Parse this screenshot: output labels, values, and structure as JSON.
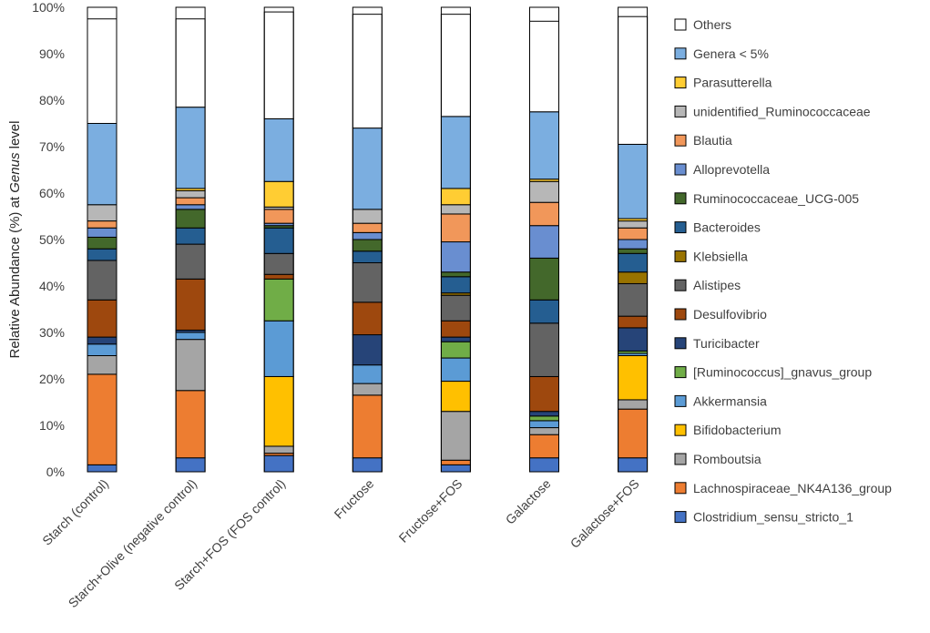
{
  "chart_data": {
    "type": "bar",
    "stacked": true,
    "title": "",
    "xlabel": "",
    "ylabel": {
      "prefix": "Relative Abundance (%) at ",
      "italic": "Genus",
      "suffix": " level"
    },
    "ylim": [
      0,
      100
    ],
    "yticks": [
      "0%",
      "10%",
      "20%",
      "30%",
      "40%",
      "50%",
      "60%",
      "70%",
      "80%",
      "90%",
      "100%"
    ],
    "categories": [
      "Starch (control)",
      "Starch+Olive (negative control)",
      "Starch+FOS (FOS control)",
      "Fructose",
      "Fructose+FOS",
      "Galactose",
      "Galactose+FOS"
    ],
    "legend_position": "right",
    "series": [
      {
        "name": "Clostridium_sensu_stricto_1",
        "color": "#4472C4",
        "values": [
          1.5,
          3.0,
          3.5,
          3.0,
          1.5,
          3.0,
          3.0
        ]
      },
      {
        "name": "Lachnospiraceae_NK4A136_group",
        "color": "#ED7D31",
        "values": [
          19.5,
          14.5,
          0.5,
          13.5,
          1.0,
          5.0,
          10.5
        ]
      },
      {
        "name": "Romboutsia",
        "color": "#A5A5A5",
        "values": [
          4.0,
          11.0,
          1.5,
          2.5,
          10.5,
          1.5,
          2.0
        ]
      },
      {
        "name": "Bifidobacterium",
        "color": "#FFC000",
        "values": [
          0.0,
          0.0,
          15.0,
          0.0,
          6.5,
          0.0,
          9.5
        ]
      },
      {
        "name": "Akkermansia",
        "color": "#5B9BD5",
        "values": [
          2.5,
          1.5,
          12.0,
          4.0,
          5.0,
          1.5,
          0.5
        ]
      },
      {
        "name": "[Ruminococcus]_gnavus_group",
        "color": "#70AD47",
        "values": [
          0.0,
          0.0,
          9.0,
          0.0,
          3.5,
          1.0,
          0.5
        ]
      },
      {
        "name": "Turicibacter",
        "color": "#264478",
        "values": [
          1.5,
          0.5,
          0.0,
          6.5,
          1.0,
          1.0,
          5.0
        ]
      },
      {
        "name": "Desulfovibrio",
        "color": "#9E480E",
        "values": [
          8.0,
          11.0,
          1.0,
          7.0,
          3.5,
          7.5,
          2.5
        ]
      },
      {
        "name": "Alistipes",
        "color": "#636363",
        "values": [
          8.5,
          7.5,
          4.5,
          8.5,
          5.5,
          11.5,
          7.0
        ]
      },
      {
        "name": "Klebsiella",
        "color": "#997300",
        "values": [
          0.0,
          0.0,
          0.0,
          0.0,
          0.5,
          0.0,
          2.5
        ]
      },
      {
        "name": "Bacteroides",
        "color": "#255E91",
        "values": [
          2.5,
          3.5,
          5.5,
          2.5,
          3.5,
          5.0,
          4.0
        ]
      },
      {
        "name": "Ruminococcaceae_UCG-005",
        "color": "#43682B",
        "values": [
          2.5,
          4.0,
          0.5,
          2.5,
          1.0,
          9.0,
          1.0
        ]
      },
      {
        "name": "Alloprevotella",
        "color": "#698ED0",
        "values": [
          2.0,
          1.0,
          0.5,
          1.5,
          6.5,
          7.0,
          2.0
        ]
      },
      {
        "name": "Blautia",
        "color": "#F1975A",
        "values": [
          1.5,
          1.5,
          3.0,
          2.0,
          6.0,
          5.0,
          2.5
        ]
      },
      {
        "name": "unidentified_Ruminococcaceae",
        "color": "#B7B7B7",
        "values": [
          3.5,
          1.5,
          0.5,
          3.0,
          2.0,
          4.5,
          1.5
        ]
      },
      {
        "name": "Parasutterella",
        "color": "#FFCD33",
        "values": [
          0.0,
          0.5,
          5.5,
          0.0,
          3.5,
          0.5,
          0.5
        ]
      },
      {
        "name": "Genera < 5%",
        "color": "#7BAEE0",
        "values": [
          17.5,
          17.5,
          13.5,
          17.5,
          15.5,
          14.5,
          16.0
        ]
      },
      {
        "name": "Others",
        "color": "#FFFFFF",
        "values": [
          22.5,
          19.0,
          23.0,
          24.5,
          22.0,
          19.5,
          27.5
        ]
      }
    ]
  }
}
